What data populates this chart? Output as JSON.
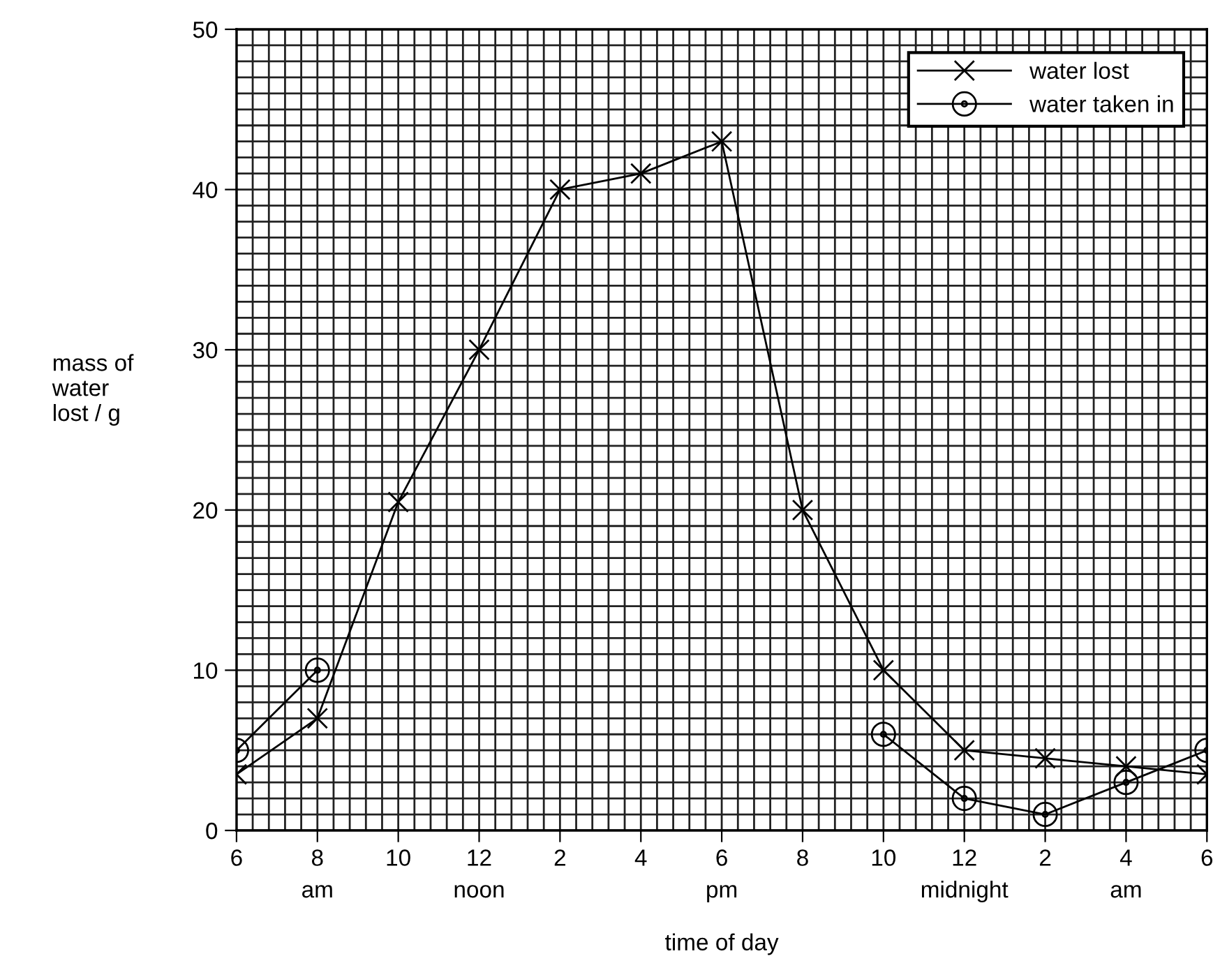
{
  "chart_data": {
    "type": "line",
    "xlabel": "time of day",
    "ylabel": "mass of\nwater\nlost / g",
    "categories": [
      "6",
      "8\nam",
      "10",
      "12\nnoon",
      "2",
      "4",
      "6\npm",
      "8",
      "10",
      "12\nmidnight",
      "2",
      "4\nam",
      "6"
    ],
    "ylim": [
      0,
      50
    ],
    "yticks": [
      0,
      10,
      20,
      30,
      40,
      50
    ],
    "grid": true,
    "legend": "top right",
    "series": [
      {
        "name": "water lost",
        "color": "#000000",
        "marker": "cross",
        "values": [
          3.5,
          7,
          20.5,
          30,
          40,
          41,
          43,
          20,
          10,
          5,
          4.5,
          4,
          3.5
        ]
      },
      {
        "name": "water taken in",
        "color": "#000000",
        "marker": "circle",
        "values": [
          5,
          10,
          null,
          null,
          null,
          null,
          null,
          null,
          6,
          2,
          1,
          3,
          5
        ]
      }
    ]
  }
}
